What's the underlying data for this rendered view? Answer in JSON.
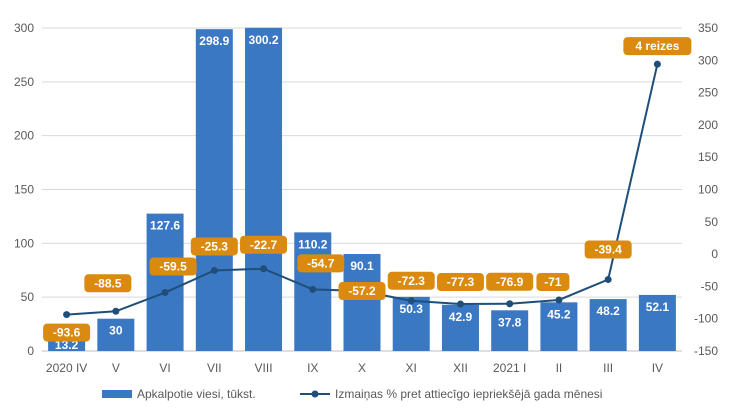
{
  "chart_data": {
    "type": "bar",
    "categories": [
      "2020 IV",
      "V",
      "VI",
      "VII",
      "VIII",
      "IX",
      "X",
      "XI",
      "XII",
      "2021 I",
      "II",
      "III",
      "IV"
    ],
    "series": [
      {
        "name": "Apkalpotie viesi, tūkst.",
        "type": "bar",
        "axis": "left",
        "values": [
          13.2,
          30,
          127.6,
          298.9,
          300.2,
          110.2,
          90.1,
          50.3,
          42.9,
          37.8,
          45.2,
          48.2,
          52.1
        ],
        "labels": [
          "13.2",
          "30",
          "127.6",
          "298.9",
          "300.2",
          "110.2",
          "90.1",
          "50.3",
          "42.9",
          "37.8",
          "45.2",
          "48.2",
          "52.1"
        ]
      },
      {
        "name": "Izmaiņas % pret attiecīgo iepriekšējā gada mēnesi",
        "type": "line",
        "axis": "right",
        "values": [
          -93.6,
          -88.5,
          -59.5,
          -25.3,
          -22.7,
          -54.7,
          -57.2,
          -72.3,
          -77.3,
          -76.9,
          -71,
          -39.4,
          294
        ],
        "labels": [
          "-93.6",
          "-88.5",
          "-59.5",
          "-25.3",
          "-22.7",
          "-54.7",
          "-57.2",
          "-72.3",
          "-77.3",
          "-76.9",
          "-71",
          "-39.4",
          "4 reizes"
        ]
      }
    ],
    "left_axis": {
      "min": 0,
      "max": 300,
      "ticks": [
        0,
        50,
        100,
        150,
        200,
        250,
        300
      ]
    },
    "right_axis": {
      "min": -150,
      "max": 350,
      "ticks": [
        -150,
        -100,
        -50,
        0,
        50,
        100,
        150,
        200,
        250,
        300,
        350
      ]
    },
    "grid": true,
    "legend_position": "bottom",
    "colors": {
      "bar": "#3a78c3",
      "line": "#1f4e79",
      "label_bg": "#d98a0f",
      "grid": "#d9d9d9",
      "axis": "#595959"
    }
  }
}
